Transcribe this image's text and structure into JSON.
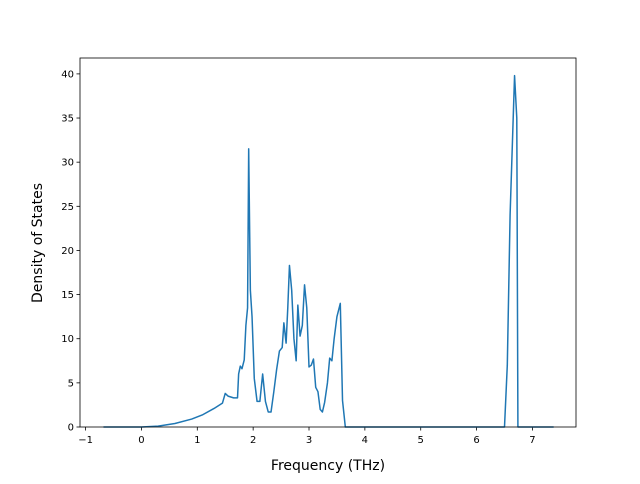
{
  "chart_data": {
    "type": "line",
    "x_label": "Frequency (THz)",
    "y_label": "Density of States",
    "xlim": [
      -1.1,
      7.78
    ],
    "ylim": [
      0,
      41.8
    ],
    "xticks": [
      {
        "value": -1,
        "label": "−1"
      },
      0,
      1,
      2,
      3,
      4,
      5,
      6,
      7
    ],
    "yticks": [
      0,
      5,
      10,
      15,
      20,
      25,
      30,
      35,
      40
    ],
    "grid": false,
    "series": [
      {
        "color": "#1f77b4",
        "x": [
          -0.68,
          0,
          0.3,
          0.6,
          0.9,
          1.1,
          1.3,
          1.45,
          1.5,
          1.55,
          1.65,
          1.72,
          1.74,
          1.77,
          1.8,
          1.84,
          1.87,
          1.9,
          1.92,
          1.95,
          1.98,
          2.02,
          2.07,
          2.12,
          2.17,
          2.22,
          2.27,
          2.32,
          2.37,
          2.42,
          2.47,
          2.52,
          2.55,
          2.59,
          2.62,
          2.65,
          2.69,
          2.73,
          2.77,
          2.8,
          2.84,
          2.88,
          2.92,
          2.96,
          3.0,
          3.04,
          3.08,
          3.12,
          3.16,
          3.2,
          3.24,
          3.28,
          3.33,
          3.37,
          3.41,
          3.45,
          3.5,
          3.56,
          3.6,
          3.65,
          4.5,
          6.5,
          6.55,
          6.6,
          6.68,
          6.72,
          6.74,
          7.38
        ],
        "values": [
          0,
          0,
          0.1,
          0.4,
          0.9,
          1.4,
          2.1,
          2.7,
          3.8,
          3.5,
          3.3,
          3.3,
          6.0,
          6.9,
          6.6,
          7.6,
          11.5,
          13.5,
          31.5,
          15.5,
          12.5,
          5.5,
          2.9,
          2.9,
          6.0,
          2.9,
          1.7,
          1.7,
          4.0,
          6.5,
          8.6,
          9.0,
          11.8,
          9.5,
          13.5,
          18.3,
          15.5,
          10.0,
          7.5,
          13.8,
          10.3,
          11.5,
          16.1,
          13.5,
          6.8,
          7.0,
          7.7,
          4.5,
          4.0,
          2.0,
          1.7,
          2.8,
          5.0,
          7.8,
          7.5,
          10.0,
          12.5,
          14.0,
          3.0,
          0,
          0,
          0,
          7,
          24,
          39.8,
          35,
          0,
          0
        ]
      }
    ]
  }
}
